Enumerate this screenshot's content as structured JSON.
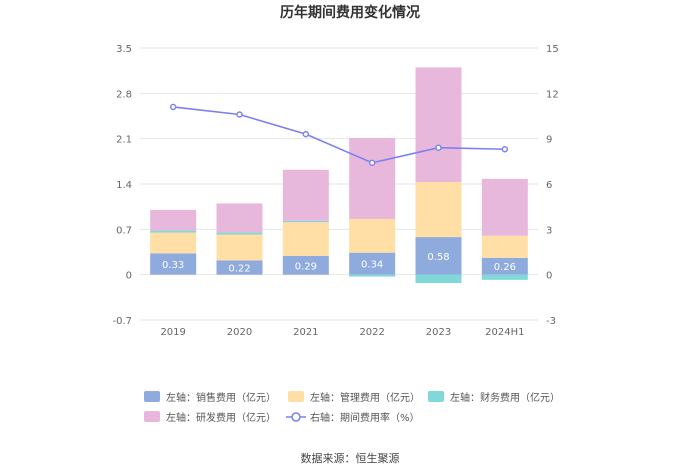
{
  "chart_data": {
    "type": "bar",
    "title": "历年期间费用变化情况",
    "categories": [
      "2019",
      "2020",
      "2021",
      "2022",
      "2023",
      "2024H1"
    ],
    "y_left": {
      "ylim": [
        -0.7,
        3.5
      ],
      "ticks": [
        "-0.7",
        "0",
        "0.7",
        "1.4",
        "2.1",
        "2.8",
        "3.5"
      ]
    },
    "y_right": {
      "ylim": [
        -3,
        15
      ],
      "ticks": [
        "-3",
        "0",
        "3",
        "6",
        "9",
        "12",
        "15"
      ]
    },
    "series": [
      {
        "name": "左轴：销售费用（亿元）",
        "type": "bar",
        "axis": "left",
        "color": "#8faadc",
        "values": [
          0.33,
          0.22,
          0.29,
          0.34,
          0.58,
          0.26
        ],
        "labels": [
          "0.33",
          "0.22",
          "0.29",
          "0.34",
          "0.58",
          "0.26"
        ]
      },
      {
        "name": "左轴：管理费用（亿元）",
        "type": "bar",
        "axis": "left",
        "color": "#ffdfa6",
        "values": [
          0.32,
          0.4,
          0.52,
          0.52,
          0.85,
          0.34
        ]
      },
      {
        "name": "左轴：财务费用（亿元）",
        "type": "bar",
        "axis": "left",
        "color": "#80d8d8",
        "values": [
          0.03,
          0.03,
          0.02,
          -0.03,
          -0.13,
          -0.08
        ]
      },
      {
        "name": "左轴：研发费用（亿元）",
        "type": "bar",
        "axis": "left",
        "color": "#e8b8dc",
        "values": [
          0.32,
          0.45,
          0.79,
          1.25,
          1.77,
          0.88
        ]
      },
      {
        "name": "右轴：期间费用率（%）",
        "type": "line",
        "axis": "right",
        "color": "#7a80f0",
        "values": [
          11.1,
          10.6,
          9.3,
          7.4,
          8.4,
          8.3
        ]
      }
    ],
    "grid": true,
    "legend_position": "bottom"
  },
  "source_text": "数据来源：恒生聚源"
}
